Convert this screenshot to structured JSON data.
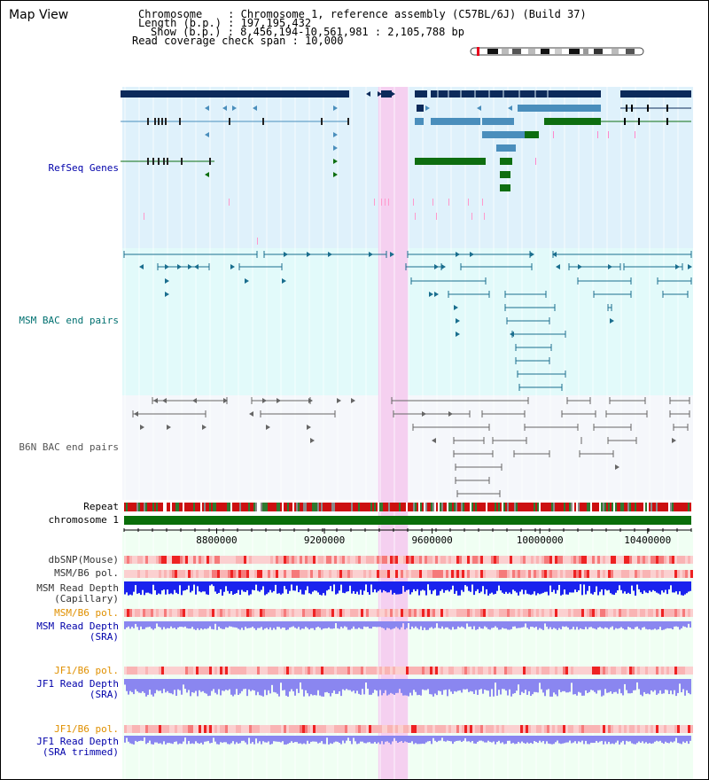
{
  "title": "Map View",
  "info": {
    "chromosome": "Chromosome    : Chromosome 1, reference assembly (C57BL/6J) (Build 37)",
    "length": "Length (b.p.) : 197,195,432",
    "show": "Show (b.p.) : 8,456,194-10,561,981 : 2,105,788 bp",
    "coverage": "Read coverage check span : 10,000"
  },
  "labels": {
    "refseq": "RefSeq Genes",
    "msm_bac": "MSM BAC end pairs",
    "b6n_bac": "B6N BAC end pairs",
    "repeat": "Repeat",
    "chromosome": "chromosome 1",
    "dbsnp": "dbSNP(Mouse)",
    "msm_pol1": "MSM/B6 pol.",
    "msm_depth_cap": "MSM Read Depth\n(Capillary)",
    "msm_pol2": "MSM/B6 pol.",
    "msm_depth_sra": "MSM Read Depth\n(SRA)",
    "jf1_pol1": "JF1/B6 pol.",
    "jf1_depth_sra": "JF1 Read Depth\n(SRA)",
    "jf1_pol2": "JF1/B6 pol.",
    "jf1_depth_trim": "JF1 Read Depth\n(SRA trimmed)"
  },
  "axis": {
    "ticks": [
      "8800000",
      "9200000",
      "9600000",
      "10000000",
      "10400000"
    ],
    "tick_values": [
      8800000,
      9200000,
      9600000,
      10000000,
      10400000
    ],
    "range": [
      8456194,
      10561981
    ]
  },
  "highlight": {
    "start": 9400000,
    "end": 9510000,
    "color": "#f5d0f0"
  },
  "colors": {
    "refseq_dark": "#0c2a5a",
    "refseq_light": "#4a8ebc",
    "refseq_green": "#0e6e10",
    "msm_bac": "#1a6e8e",
    "b6n_bac": "#666666",
    "depth_blue": "#1a22ee",
    "depth_lilac": "#8a86f0",
    "pol_red": "#ee2222",
    "chrom_green": "#0a6e0a"
  }
}
